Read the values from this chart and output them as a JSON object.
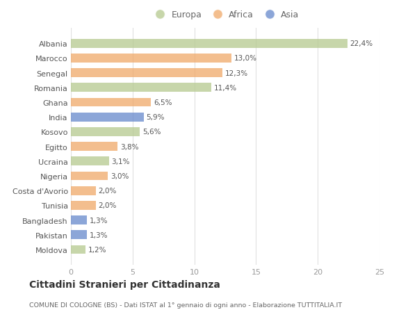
{
  "countries": [
    "Albania",
    "Marocco",
    "Senegal",
    "Romania",
    "Ghana",
    "India",
    "Kosovo",
    "Egitto",
    "Ucraina",
    "Nigeria",
    "Costa d'Avorio",
    "Tunisia",
    "Bangladesh",
    "Pakistan",
    "Moldova"
  ],
  "values": [
    22.4,
    13.0,
    12.3,
    11.4,
    6.5,
    5.9,
    5.6,
    3.8,
    3.1,
    3.0,
    2.0,
    2.0,
    1.3,
    1.3,
    1.2
  ],
  "labels": [
    "22,4%",
    "13,0%",
    "12,3%",
    "11,4%",
    "6,5%",
    "5,9%",
    "5,6%",
    "3,8%",
    "3,1%",
    "3,0%",
    "2,0%",
    "2,0%",
    "1,3%",
    "1,3%",
    "1,2%"
  ],
  "continents": [
    "Europa",
    "Africa",
    "Africa",
    "Europa",
    "Africa",
    "Asia",
    "Europa",
    "Africa",
    "Europa",
    "Africa",
    "Africa",
    "Africa",
    "Asia",
    "Asia",
    "Europa"
  ],
  "colors": {
    "Europa": "#b5c98e",
    "Africa": "#f0a868",
    "Asia": "#6688cc"
  },
  "legend_labels": [
    "Europa",
    "Africa",
    "Asia"
  ],
  "legend_colors": [
    "#b5c98e",
    "#f0a868",
    "#6688cc"
  ],
  "title": "Cittadini Stranieri per Cittadinanza",
  "subtitle": "COMUNE DI COLOGNE (BS) - Dati ISTAT al 1° gennaio di ogni anno - Elaborazione TUTTITALIA.IT",
  "xlim": [
    0,
    25
  ],
  "xticks": [
    0,
    5,
    10,
    15,
    20,
    25
  ],
  "bg_color": "#ffffff",
  "grid_color": "#e0e0e0",
  "bar_alpha": 0.75,
  "bar_height": 0.6
}
